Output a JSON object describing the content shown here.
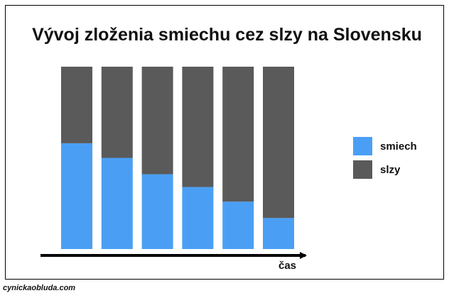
{
  "chart_data": {
    "type": "bar",
    "stacked": true,
    "title": "Vývoj zloženia smiechu cez slzy na Slovensku",
    "xlabel": "čas",
    "ylabel": "",
    "categories": [
      "",
      "",
      "",
      "",
      "",
      ""
    ],
    "series": [
      {
        "name": "smiech",
        "color": "#4a9ff5",
        "values": [
          58,
          50,
          41,
          34,
          26,
          17
        ]
      },
      {
        "name": "slzy",
        "color": "#5a5a5a",
        "values": [
          42,
          50,
          59,
          66,
          74,
          83
        ]
      }
    ],
    "ylim": [
      0,
      100
    ],
    "grid": false,
    "legend_position": "right"
  },
  "watermark": "cynickaobluda.com"
}
